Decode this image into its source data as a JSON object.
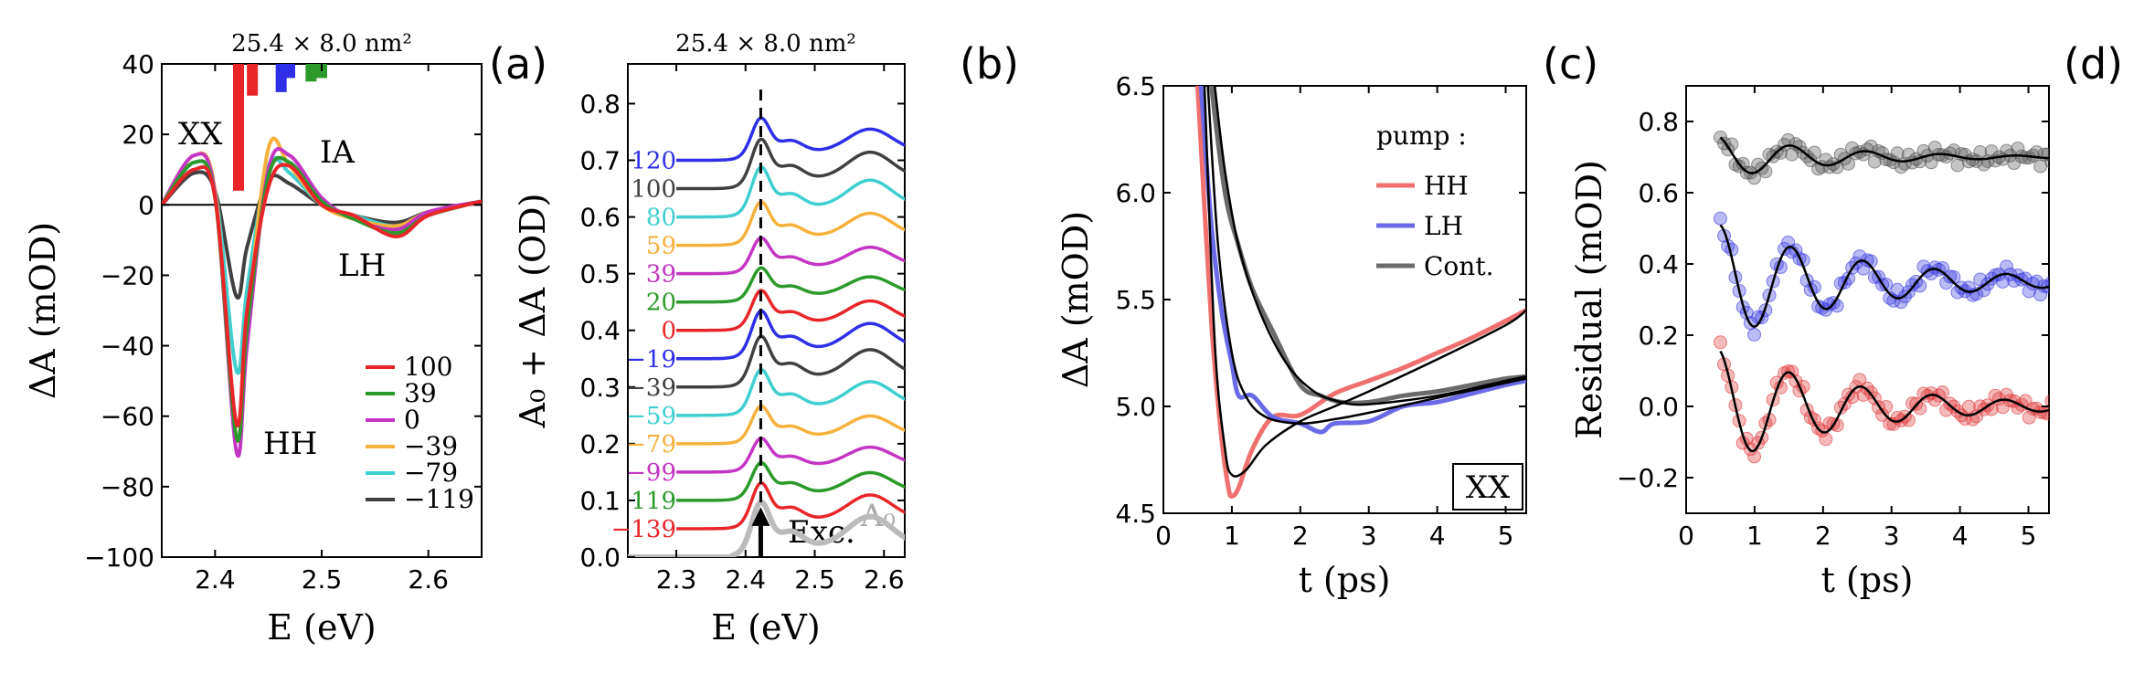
{
  "chart_data": [
    {
      "panel": "(a)",
      "type": "line",
      "top_label": "25.4 × 8.0 nm²",
      "xlabel": "E (eV)",
      "ylabel": "ΔA (mOD)",
      "xlim": [
        2.35,
        2.65
      ],
      "ylim": [
        -100,
        40
      ],
      "xticks": [
        "2.4",
        "2.5",
        "2.6"
      ],
      "yticks": [
        "−100",
        "−80",
        "−60",
        "−40",
        "−20",
        "0",
        "20",
        "40"
      ],
      "annotations": [
        "XX",
        "IA",
        "LH",
        "HH"
      ],
      "legend_position": "lower right",
      "series": [
        {
          "name": "100",
          "color": "#e8262a",
          "x": [
            2.35,
            2.38,
            2.4,
            2.42,
            2.43,
            2.45,
            2.47,
            2.5,
            2.53,
            2.57,
            2.6,
            2.65
          ],
          "y": [
            0,
            10,
            2,
            -62,
            -30,
            5,
            11,
            0,
            -3,
            -9,
            -3,
            1
          ]
        },
        {
          "name": "39",
          "color": "#2b9a2b",
          "x": [
            2.35,
            2.38,
            2.4,
            2.42,
            2.43,
            2.45,
            2.47,
            2.5,
            2.53,
            2.57,
            2.6,
            2.65
          ],
          "y": [
            0,
            12,
            2,
            -66,
            -35,
            8,
            12,
            1,
            -4,
            -8,
            -3,
            1
          ]
        },
        {
          "name": "0",
          "color": "#c435c4",
          "x": [
            2.35,
            2.38,
            2.4,
            2.42,
            2.43,
            2.45,
            2.47,
            2.5,
            2.53,
            2.57,
            2.6,
            2.65
          ],
          "y": [
            0,
            14,
            3,
            -70,
            -40,
            10,
            14,
            2,
            -4,
            -7,
            -2,
            1
          ]
        },
        {
          "name": "−39",
          "color": "#f6b13c",
          "x": [
            2.35,
            2.38,
            2.4,
            2.42,
            2.43,
            2.45,
            2.47,
            2.5,
            2.53,
            2.57,
            2.6,
            2.65
          ],
          "y": [
            0,
            14,
            4,
            -66,
            -35,
            16,
            11,
            0,
            -4,
            -6,
            -2,
            1
          ]
        },
        {
          "name": "−79",
          "color": "#3fcfcf",
          "x": [
            2.35,
            2.38,
            2.4,
            2.42,
            2.43,
            2.45,
            2.47,
            2.5,
            2.53,
            2.57,
            2.6,
            2.65
          ],
          "y": [
            0,
            12,
            4,
            -47,
            -24,
            11,
            9,
            0,
            -3,
            -6,
            -2,
            1
          ]
        },
        {
          "name": "−119",
          "color": "#404040",
          "x": [
            2.35,
            2.38,
            2.4,
            2.42,
            2.43,
            2.45,
            2.47,
            2.5,
            2.53,
            2.57,
            2.6,
            2.65
          ],
          "y": [
            0,
            9,
            4,
            -26,
            -12,
            7,
            6,
            0,
            -3,
            -5,
            -2,
            1
          ]
        }
      ],
      "bars": [
        {
          "x": 2.422,
          "y0": 4,
          "y1": 40,
          "color": "#e8262a"
        },
        {
          "x": 2.435,
          "y0": 31,
          "y1": 40,
          "color": "#e8262a"
        },
        {
          "x": 2.462,
          "y0": 32,
          "y1": 40,
          "color": "#2f2fe8"
        },
        {
          "x": 2.47,
          "y0": 36,
          "y1": 40,
          "color": "#2f2fe8"
        },
        {
          "x": 2.49,
          "y0": 35,
          "y1": 40,
          "color": "#2b9a2b"
        },
        {
          "x": 2.5,
          "y0": 36,
          "y1": 40,
          "color": "#2b9a2b"
        }
      ]
    },
    {
      "panel": "(b)",
      "type": "line",
      "top_label": "25.4 × 8.0 nm²",
      "xlabel": "E (eV)",
      "ylabel": "A₀ + ΔA (OD)",
      "xlim": [
        2.23,
        2.63
      ],
      "ylim": [
        0.0,
        0.87
      ],
      "xticks": [
        "2.3",
        "2.4",
        "2.5",
        "2.6"
      ],
      "yticks": [
        "0.0",
        "0.1",
        "0.2",
        "0.3",
        "0.4",
        "0.5",
        "0.6",
        "0.7",
        "0.8"
      ],
      "dashed_line_x": 2.422,
      "arrow_label": "Exc.",
      "baseline_label": "A₀",
      "offset_labels": [
        "120",
        "100",
        "80",
        "59",
        "39",
        "20",
        "0",
        "−19",
        "−39",
        "−59",
        "−79",
        "−99",
        "119",
        "−139"
      ],
      "offset_colors": [
        "#2f2fe8",
        "#404040",
        "#3fcfcf",
        "#f6b13c",
        "#c435c4",
        "#2b9a2b",
        "#e8262a",
        "#2f2fe8",
        "#404040",
        "#3fcfcf",
        "#f6b13c",
        "#c435c4",
        "#2b9a2b",
        "#e8262a"
      ],
      "offsets": [
        0.7,
        0.65,
        0.6,
        0.55,
        0.5,
        0.45,
        0.4,
        0.35,
        0.3,
        0.25,
        0.2,
        0.15,
        0.1,
        0.05
      ],
      "baseline_color": "#bbbbbb"
    },
    {
      "panel": "(c)",
      "type": "line",
      "xlabel": "t (ps)",
      "ylabel": "ΔA (mOD)",
      "xlim": [
        0,
        5.3
      ],
      "ylim": [
        4.5,
        6.5
      ],
      "xticks": [
        "0",
        "1",
        "2",
        "3",
        "4",
        "5"
      ],
      "yticks": [
        "4.5",
        "5.0",
        "5.5",
        "6.0",
        "6.5"
      ],
      "legend_title": "pump :",
      "boxed_label": "XX",
      "series": [
        {
          "name": "HH",
          "color": "#f07070",
          "x": [
            0.5,
            0.7,
            0.85,
            0.95,
            1.0,
            1.1,
            1.3,
            1.6,
            2.0,
            2.5,
            3.0,
            3.5,
            4.0,
            4.5,
            5.0,
            5.3
          ],
          "y": [
            6.5,
            5.4,
            4.85,
            4.62,
            4.58,
            4.62,
            4.8,
            4.95,
            4.96,
            5.06,
            5.12,
            5.18,
            5.25,
            5.32,
            5.4,
            5.45
          ]
        },
        {
          "name": "LH",
          "color": "#6a6ae8",
          "x": [
            0.55,
            0.7,
            0.85,
            1.0,
            1.1,
            1.3,
            1.6,
            2.0,
            2.3,
            2.5,
            3.0,
            3.5,
            4.0,
            4.5,
            5.0,
            5.3
          ],
          "y": [
            6.5,
            5.85,
            5.45,
            5.2,
            5.05,
            5.05,
            4.95,
            4.92,
            4.88,
            4.92,
            4.93,
            5.0,
            5.02,
            5.06,
            5.1,
            5.12
          ]
        },
        {
          "name": "Cont.",
          "color": "#6a6a6a",
          "x": [
            0.7,
            0.9,
            1.1,
            1.3,
            1.6,
            2.0,
            2.3,
            2.6,
            3.0,
            3.5,
            4.0,
            4.5,
            5.0,
            5.3
          ],
          "y": [
            6.5,
            6.0,
            5.75,
            5.55,
            5.35,
            5.1,
            5.05,
            5.02,
            5.02,
            5.05,
            5.07,
            5.1,
            5.13,
            5.14
          ]
        }
      ],
      "fits": [
        {
          "x": [
            0.6,
            0.75,
            0.9,
            1.0,
            1.2,
            1.5,
            2.0,
            2.5,
            3.0,
            4.0,
            5.0,
            5.3
          ],
          "y": [
            6.5,
            5.3,
            4.8,
            4.68,
            4.7,
            4.82,
            4.93,
            5.0,
            5.07,
            5.22,
            5.38,
            5.45
          ]
        },
        {
          "x": [
            0.65,
            0.8,
            1.0,
            1.2,
            1.5,
            2.0,
            2.5,
            3.0,
            4.0,
            5.0,
            5.3
          ],
          "y": [
            6.5,
            5.75,
            5.25,
            5.05,
            4.95,
            4.92,
            4.94,
            4.97,
            5.04,
            5.11,
            5.13
          ]
        },
        {
          "x": [
            0.75,
            0.9,
            1.1,
            1.4,
            1.8,
            2.2,
            2.6,
            3.0,
            4.0,
            5.0,
            5.3
          ],
          "y": [
            6.5,
            6.1,
            5.75,
            5.45,
            5.2,
            5.07,
            5.02,
            5.01,
            5.05,
            5.12,
            5.14
          ]
        }
      ]
    },
    {
      "panel": "(d)",
      "type": "scatter",
      "xlabel": "t (ps)",
      "ylabel": "Residual (mOD)",
      "xlim": [
        0,
        5.3
      ],
      "ylim": [
        -0.3,
        0.9
      ],
      "xticks": [
        "0",
        "1",
        "2",
        "3",
        "4",
        "5"
      ],
      "yticks": [
        "−0.2",
        "0.0",
        "0.2",
        "0.4",
        "0.6",
        "0.8"
      ],
      "series": [
        {
          "name": "Cont.",
          "color": "#555555",
          "base": 0.7,
          "amp": 0.06,
          "decay": 0.55,
          "period": 1.1,
          "phase": 0.4
        },
        {
          "name": "LH",
          "color": "#3a3ae0",
          "base": 0.35,
          "amp": 0.16,
          "decay": 0.7,
          "period": 1.05,
          "phase": 0.1
        },
        {
          "name": "HH",
          "color": "#e03a3a",
          "base": 0.0,
          "amp": 0.16,
          "decay": 0.65,
          "period": 1.05,
          "phase": 0.25
        }
      ]
    }
  ]
}
